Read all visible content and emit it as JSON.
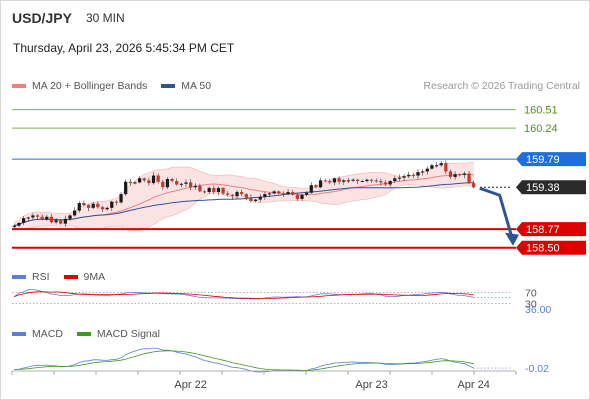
{
  "header": {
    "pair": "USD/JPY",
    "timeframe": "30 MIN",
    "timestamp": "Thursday, April 23, 2026 5:45:34 PM CET",
    "attribution": "Research © 2026 Trading Central"
  },
  "legends": {
    "main": [
      {
        "label": "MA 20 + Bollinger Bands",
        "color": "#f08080"
      },
      {
        "label": "MA 50",
        "color": "#2c5596"
      }
    ],
    "rsi": [
      {
        "label": "RSI",
        "color": "#5b7fd6"
      },
      {
        "label": "9MA",
        "color": "#e00000"
      }
    ],
    "macd": [
      {
        "label": "MACD",
        "color": "#5b7fd6"
      },
      {
        "label": "MACD Signal",
        "color": "#3c9a1e"
      }
    ]
  },
  "chart_data": [
    {
      "type": "candlestick",
      "title": "USD/JPY 30 MIN",
      "ylim": [
        158.35,
        160.65
      ],
      "x_ticks": [
        "Apr 22",
        "Apr 23",
        "Apr 24"
      ],
      "close": [
        158.82,
        158.86,
        158.93,
        158.94,
        158.97,
        158.95,
        158.91,
        158.95,
        158.87,
        158.9,
        158.85,
        158.92,
        158.97,
        159.04,
        159.15,
        159.12,
        159.08,
        159.14,
        159.09,
        159.06,
        159.08,
        159.17,
        159.16,
        159.28,
        159.46,
        159.44,
        159.45,
        159.51,
        159.48,
        159.44,
        159.55,
        159.46,
        159.38,
        159.5,
        159.47,
        159.42,
        159.43,
        159.45,
        159.38,
        159.4,
        159.32,
        159.31,
        159.37,
        159.31,
        159.37,
        159.29,
        159.27,
        159.25,
        159.31,
        159.28,
        159.23,
        159.18,
        159.2,
        159.24,
        159.28,
        159.29,
        159.32,
        159.29,
        159.28,
        159.31,
        159.27,
        159.21,
        159.27,
        159.3,
        159.41,
        159.38,
        159.48,
        159.47,
        159.45,
        159.51,
        159.46,
        159.48,
        159.48,
        159.49,
        159.47,
        159.47,
        159.49,
        159.48,
        159.47,
        159.45,
        159.42,
        159.47,
        159.51,
        159.52,
        159.54,
        159.56,
        159.55,
        159.6,
        159.61,
        159.65,
        159.7,
        159.7,
        159.73,
        159.61,
        159.53,
        159.57,
        159.56,
        159.58,
        159.44,
        159.38
      ],
      "support_resistance": [
        {
          "value": 160.51,
          "label": "160.51",
          "color": "#7ab648"
        },
        {
          "value": 160.24,
          "label": "160.24",
          "color": "#7ab648"
        },
        {
          "value": 159.79,
          "label": "159.79",
          "color": "#1e6fd9"
        },
        {
          "value": 159.38,
          "label": "159.38",
          "color": "#2a2a2a"
        },
        {
          "value": 158.77,
          "label": "158.77",
          "color": "#dd0000"
        },
        {
          "value": 158.5,
          "label": "158.50",
          "color": "#dd0000"
        }
      ],
      "projection_target": 158.5
    },
    {
      "type": "line",
      "title": "RSI",
      "ylim": [
        0,
        100
      ],
      "levels": [
        {
          "value": 70,
          "label": "70"
        },
        {
          "value": 30,
          "label": "30"
        }
      ],
      "last_value_label": "36.00"
    },
    {
      "type": "line",
      "title": "MACD",
      "last_value_label": "-0.02"
    }
  ]
}
